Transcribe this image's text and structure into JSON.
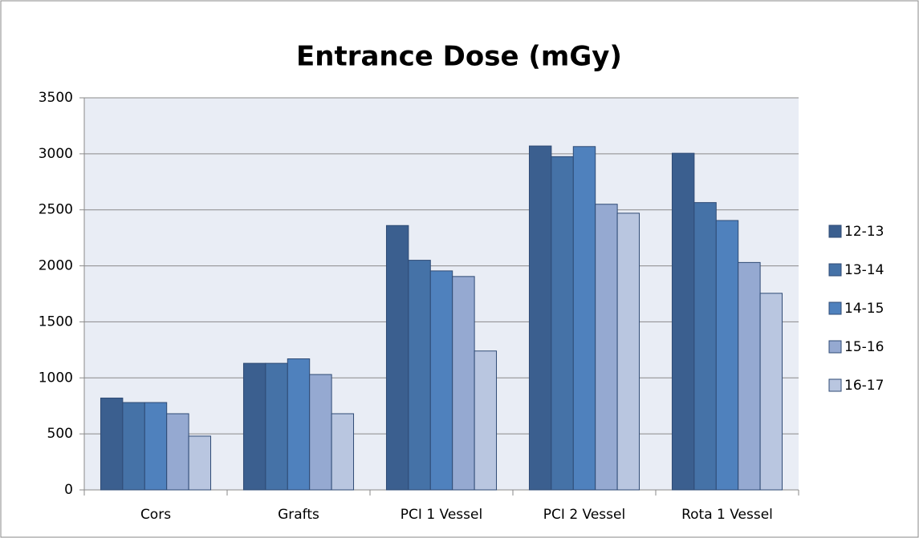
{
  "chart_data": {
    "type": "bar",
    "title": "Entrance Dose (mGy)",
    "categories": [
      "Cors",
      "Grafts",
      "PCI 1 Vessel",
      "PCI 2 Vessel",
      "Rota 1 Vessel"
    ],
    "series": [
      {
        "name": "12-13",
        "color": "#3b5f8f",
        "values": [
          820,
          1130,
          2360,
          3070,
          3005
        ]
      },
      {
        "name": "13-14",
        "color": "#4572a7",
        "values": [
          780,
          1130,
          2050,
          2975,
          2565
        ]
      },
      {
        "name": "14-15",
        "color": "#4f81bd",
        "values": [
          780,
          1170,
          1955,
          3065,
          2405
        ]
      },
      {
        "name": "15-16",
        "color": "#95a9d1",
        "values": [
          680,
          1030,
          1905,
          2550,
          2030
        ]
      },
      {
        "name": "16-17",
        "color": "#b9c6e0",
        "values": [
          480,
          680,
          1240,
          2470,
          1755
        ]
      }
    ],
    "ylim": [
      0,
      3500
    ],
    "yticks": [
      0,
      500,
      1000,
      1500,
      2000,
      2500,
      3000,
      3500
    ],
    "grid": true,
    "legend": "right"
  }
}
